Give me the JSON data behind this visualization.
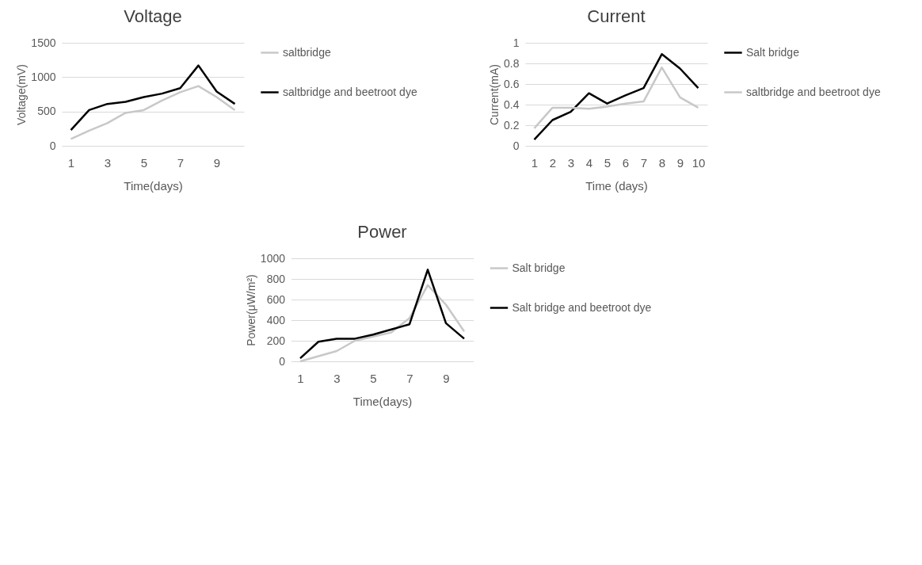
{
  "chart_data": [
    {
      "type": "line",
      "title": "Voltage",
      "xlabel": "Time(days)",
      "ylabel": "Voltage(mV)",
      "categories": [
        "1",
        null,
        "3",
        null,
        "5",
        null,
        "7",
        null,
        "9",
        null
      ],
      "ylim": [
        0,
        1500
      ],
      "yticks": [
        0,
        500,
        1000,
        1500
      ],
      "grid": "y",
      "legend": "right",
      "series": [
        {
          "name": "saltbridge",
          "color": "#c8c8c8",
          "values": [
            100,
            220,
            330,
            480,
            520,
            660,
            780,
            870,
            710,
            520
          ]
        },
        {
          "name": "saltbridge and beetroot dye",
          "color": "#000000",
          "values": [
            230,
            520,
            610,
            640,
            710,
            760,
            840,
            1170,
            790,
            610
          ]
        }
      ]
    },
    {
      "type": "line",
      "title": "Current",
      "xlabel": "Time (days)",
      "ylabel": "Current(mA)",
      "categories": [
        "1",
        "2",
        "3",
        "4",
        "5",
        "6",
        "7",
        "8",
        "9",
        "10"
      ],
      "ylim": [
        0,
        1
      ],
      "yticks": [
        0,
        0.2,
        0.4,
        0.6,
        0.8,
        1
      ],
      "grid": "y",
      "legend": "right",
      "series": [
        {
          "name": "Salt bridge",
          "color": "#000000",
          "values": [
            0.06,
            0.25,
            0.33,
            0.51,
            0.41,
            0.49,
            0.56,
            0.89,
            0.75,
            0.56
          ]
        },
        {
          "name": "saltbridge and beetroot dye",
          "color": "#c8c8c8",
          "values": [
            0.17,
            0.37,
            0.37,
            0.36,
            0.38,
            0.41,
            0.43,
            0.76,
            0.47,
            0.37
          ]
        }
      ]
    },
    {
      "type": "line",
      "title": "Power",
      "xlabel": "Time(days)",
      "ylabel": "Power(μW/m²)",
      "categories": [
        "1",
        null,
        "3",
        null,
        "5",
        null,
        "7",
        null,
        "9",
        null
      ],
      "ylim": [
        0,
        1000
      ],
      "yticks": [
        0,
        200,
        400,
        600,
        800,
        1000
      ],
      "grid": "y",
      "legend": "right",
      "series": [
        {
          "name": "Salt bridge",
          "color": "#c8c8c8",
          "values": [
            0,
            50,
            100,
            200,
            240,
            280,
            420,
            740,
            550,
            290
          ]
        },
        {
          "name": "Salt bridge and beetroot dye",
          "color": "#000000",
          "values": [
            30,
            190,
            220,
            220,
            260,
            310,
            360,
            890,
            370,
            220
          ]
        }
      ]
    }
  ]
}
